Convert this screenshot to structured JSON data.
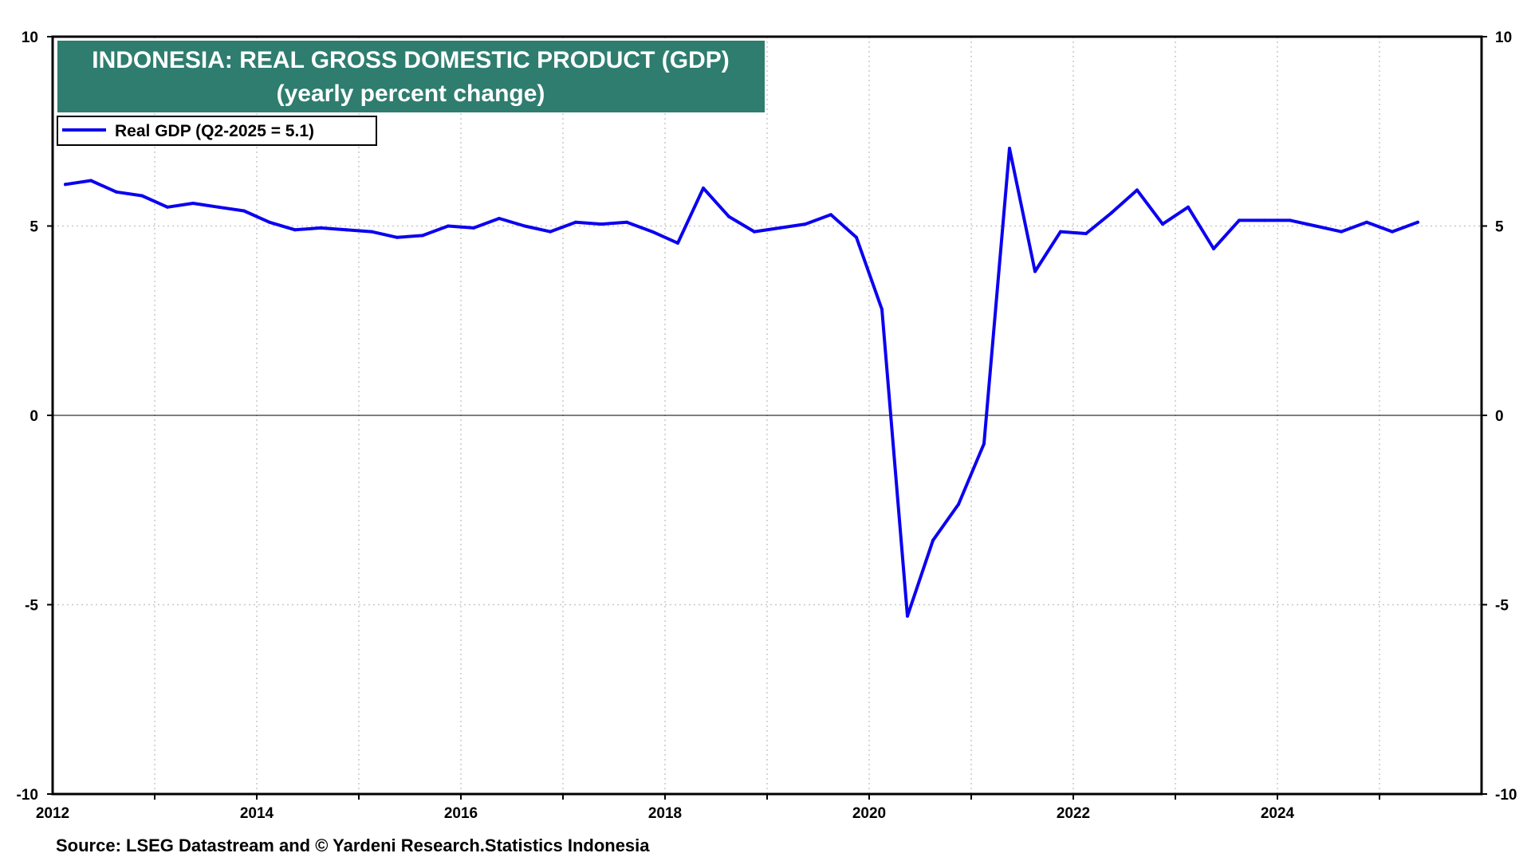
{
  "chart_data": {
    "type": "line",
    "title": "INDONESIA: REAL GROSS DOMESTIC PRODUCT (GDP)",
    "subtitle": "(yearly percent change)",
    "source": "Source: LSEG Datastream and © Yardeni Research.Statistics Indonesia",
    "xlabel": "",
    "ylabel": "",
    "xlim": [
      2012,
      2026
    ],
    "ylim": [
      -10,
      10
    ],
    "x_ticks": [
      "2012",
      "2014",
      "2016",
      "2018",
      "2020",
      "2022",
      "2024"
    ],
    "y_ticks_left": [
      "10",
      "5",
      "0",
      "-5",
      "-10"
    ],
    "y_ticks_right": [
      "10",
      "5",
      "0",
      "-5",
      "-10"
    ],
    "grid": true,
    "zero_line": true,
    "legend_position": "top-left",
    "colors": {
      "series": "#0b00f0",
      "title_bg": "#2e7d6f",
      "title_text": "#ffffff",
      "grid": "#c8c8c8",
      "axis": "#000000"
    },
    "series": [
      {
        "name": "Real GDP (Q2-2025 = 5.1)",
        "color": "#0b00f0",
        "points": [
          [
            "2012-Q1",
            6.1
          ],
          [
            "2012-Q2",
            6.2
          ],
          [
            "2012-Q3",
            5.9
          ],
          [
            "2012-Q4",
            5.8
          ],
          [
            "2013-Q1",
            5.5
          ],
          [
            "2013-Q2",
            5.6
          ],
          [
            "2013-Q3",
            5.5
          ],
          [
            "2013-Q4",
            5.4
          ],
          [
            "2014-Q1",
            5.1
          ],
          [
            "2014-Q2",
            4.9
          ],
          [
            "2014-Q3",
            4.95
          ],
          [
            "2014-Q4",
            4.9
          ],
          [
            "2015-Q1",
            4.85
          ],
          [
            "2015-Q2",
            4.7
          ],
          [
            "2015-Q3",
            4.75
          ],
          [
            "2015-Q4",
            5.0
          ],
          [
            "2016-Q1",
            4.95
          ],
          [
            "2016-Q2",
            5.2
          ],
          [
            "2016-Q3",
            5.0
          ],
          [
            "2016-Q4",
            4.85
          ],
          [
            "2017-Q1",
            5.1
          ],
          [
            "2017-Q2",
            5.05
          ],
          [
            "2017-Q3",
            5.1
          ],
          [
            "2017-Q4",
            4.85
          ],
          [
            "2018-Q1",
            4.55
          ],
          [
            "2018-Q2",
            6.0
          ],
          [
            "2018-Q3",
            5.25
          ],
          [
            "2018-Q4",
            4.85
          ],
          [
            "2019-Q1",
            4.95
          ],
          [
            "2019-Q2",
            5.05
          ],
          [
            "2019-Q3",
            5.3
          ],
          [
            "2019-Q4",
            4.7
          ],
          [
            "2020-Q1",
            2.8
          ],
          [
            "2020-Q2",
            -5.3
          ],
          [
            "2020-Q3",
            -3.3
          ],
          [
            "2020-Q4",
            -2.35
          ],
          [
            "2021-Q1",
            -0.75
          ],
          [
            "2021-Q2",
            7.05
          ],
          [
            "2021-Q3",
            3.8
          ],
          [
            "2021-Q4",
            4.85
          ],
          [
            "2022-Q1",
            4.8
          ],
          [
            "2022-Q2",
            5.35
          ],
          [
            "2022-Q3",
            5.95
          ],
          [
            "2022-Q4",
            5.05
          ],
          [
            "2023-Q1",
            5.5
          ],
          [
            "2023-Q2",
            4.4
          ],
          [
            "2023-Q3",
            5.15
          ],
          [
            "2023-Q4",
            5.15
          ],
          [
            "2024-Q1",
            5.15
          ],
          [
            "2024-Q2",
            5.0
          ],
          [
            "2024-Q3",
            4.85
          ],
          [
            "2024-Q4",
            5.1
          ],
          [
            "2025-Q1",
            4.85
          ],
          [
            "2025-Q2",
            5.1
          ]
        ]
      }
    ]
  }
}
